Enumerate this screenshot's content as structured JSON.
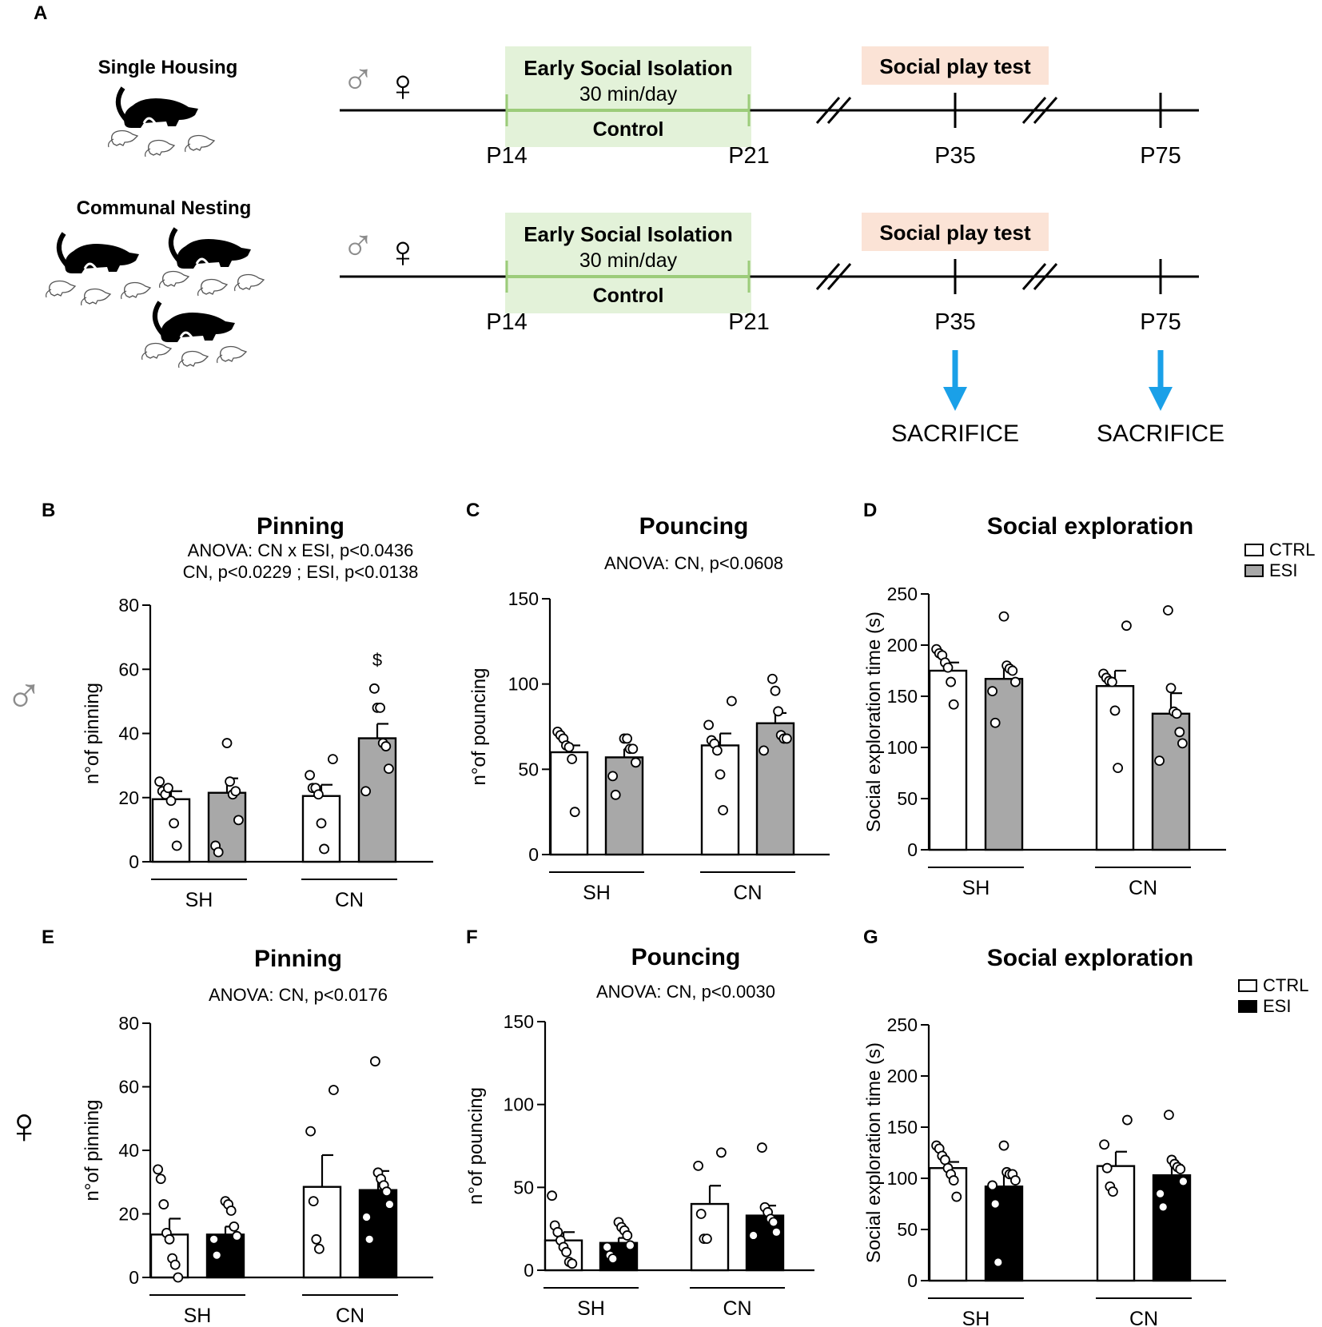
{
  "panel_a": {
    "letter": "A",
    "male_symbol": "♂",
    "female_symbol": "♀",
    "housing": [
      {
        "name": "Single Housing"
      },
      {
        "name": "Communal Nesting"
      }
    ],
    "timeline": {
      "green_title": "Early Social Isolation",
      "green_sub": "30 min/day",
      "green_control": "Control",
      "social_test": "Social play test",
      "ticks": [
        "P14",
        "P21",
        "P35",
        "P75"
      ],
      "sacrifice": "SACRIFICE"
    },
    "colors": {
      "green_box": "#e3f2d9",
      "green_line": "#9ccc7a",
      "salmon_box": "#fbe3d6",
      "arrow": "#1aa0e8",
      "gray_symbol": "#8c8c8c"
    }
  },
  "colors": {
    "ctrl_fill": "#ffffff",
    "esi_male": "#a8a8a8",
    "esi_female": "#000000"
  },
  "chart_data": [
    {
      "id": "B",
      "type": "bar",
      "letter": "B",
      "title": "Pinning",
      "anova": [
        "ANOVA: CN x ESI, p<0.0436",
        "CN, p<0.0229 ; ESI, p<0.0138"
      ],
      "ylabel": "n°of pinning",
      "ylim": [
        0,
        80
      ],
      "yticks": [
        0,
        20,
        40,
        60,
        80
      ],
      "groups": [
        "SH",
        "CN"
      ],
      "series": [
        "CTRL",
        "ESI"
      ],
      "esi_color": "#a8a8a8",
      "bars": [
        {
          "group": "SH",
          "series": "CTRL",
          "mean": 19.5,
          "sem": 2.5,
          "points": [
            25,
            22,
            21,
            23,
            19,
            12,
            5
          ]
        },
        {
          "group": "SH",
          "series": "ESI",
          "mean": 21.5,
          "sem": 4.5,
          "points": [
            37,
            25,
            21,
            22,
            13,
            5,
            3
          ]
        },
        {
          "group": "CN",
          "series": "CTRL",
          "mean": 20.5,
          "sem": 3.5,
          "points": [
            32,
            27,
            23,
            23,
            21,
            12,
            4
          ]
        },
        {
          "group": "CN",
          "series": "ESI",
          "mean": 38.5,
          "sem": 4.5,
          "points": [
            54,
            48,
            48,
            37,
            36,
            29,
            22
          ]
        }
      ],
      "annotations": [
        {
          "text": "$",
          "group": "CN",
          "series": "ESI",
          "y": 63
        }
      ]
    },
    {
      "id": "C",
      "type": "bar",
      "letter": "C",
      "title": "Pouncing",
      "anova": [
        "ANOVA: CN, p<0.0608"
      ],
      "ylabel": "n°of pouncing",
      "ylim": [
        0,
        150
      ],
      "yticks": [
        0,
        50,
        100,
        150
      ],
      "groups": [
        "SH",
        "CN"
      ],
      "series": [
        "CTRL",
        "ESI"
      ],
      "esi_color": "#a8a8a8",
      "bars": [
        {
          "group": "SH",
          "series": "CTRL",
          "mean": 60,
          "sem": 4,
          "points": [
            72,
            70,
            68,
            64,
            63,
            56,
            25
          ]
        },
        {
          "group": "SH",
          "series": "ESI",
          "mean": 57,
          "sem": 5,
          "points": [
            68,
            68,
            62,
            62,
            54,
            46,
            35
          ]
        },
        {
          "group": "CN",
          "series": "CTRL",
          "mean": 64,
          "sem": 7,
          "points": [
            90,
            76,
            67,
            65,
            61,
            47,
            26
          ]
        },
        {
          "group": "CN",
          "series": "ESI",
          "mean": 77,
          "sem": 6,
          "points": [
            103,
            96,
            84,
            70,
            68,
            68,
            61
          ]
        }
      ],
      "annotations": []
    },
    {
      "id": "D",
      "type": "bar",
      "letter": "D",
      "title": "Social exploration",
      "anova": [],
      "ylabel": "Social exploration time (s)",
      "ylim": [
        0,
        250
      ],
      "yticks": [
        0,
        50,
        100,
        150,
        200,
        250
      ],
      "groups": [
        "SH",
        "CN"
      ],
      "series": [
        "CTRL",
        "ESI"
      ],
      "esi_color": "#a8a8a8",
      "legend": [
        "CTRL",
        "ESI"
      ],
      "bars": [
        {
          "group": "SH",
          "series": "CTRL",
          "mean": 175,
          "sem": 8,
          "points": [
            196,
            192,
            190,
            183,
            178,
            164,
            142
          ]
        },
        {
          "group": "SH",
          "series": "ESI",
          "mean": 167,
          "sem": 12,
          "points": [
            228,
            180,
            177,
            175,
            164,
            155,
            124
          ]
        },
        {
          "group": "CN",
          "series": "CTRL",
          "mean": 160,
          "sem": 15,
          "points": [
            219,
            172,
            168,
            165,
            164,
            136,
            80
          ]
        },
        {
          "group": "CN",
          "series": "ESI",
          "mean": 133,
          "sem": 20,
          "points": [
            234,
            158,
            135,
            133,
            115,
            104,
            87
          ]
        }
      ],
      "annotations": []
    },
    {
      "id": "E",
      "type": "bar",
      "letter": "E",
      "title": "Pinning",
      "anova": [
        "ANOVA: CN, p<0.0176"
      ],
      "ylabel": "n°of pinning",
      "ylim": [
        0,
        80
      ],
      "yticks": [
        0,
        20,
        40,
        60,
        80
      ],
      "groups": [
        "SH",
        "CN"
      ],
      "series": [
        "CTRL",
        "ESI"
      ],
      "esi_color": "#000000",
      "bars": [
        {
          "group": "SH",
          "series": "CTRL",
          "mean": 13.5,
          "sem": 5,
          "points": [
            34,
            31,
            23,
            14,
            12,
            6,
            4,
            0
          ]
        },
        {
          "group": "SH",
          "series": "ESI",
          "mean": 13.5,
          "sem": 2.5,
          "points": [
            24,
            23,
            21,
            16,
            13,
            12,
            7
          ]
        },
        {
          "group": "CN",
          "series": "CTRL",
          "mean": 28.5,
          "sem": 10,
          "points": [
            59,
            46,
            24,
            12,
            9
          ]
        },
        {
          "group": "CN",
          "series": "ESI",
          "mean": 27.5,
          "sem": 6,
          "points": [
            68,
            33,
            31,
            29,
            27,
            23,
            19,
            12
          ]
        }
      ],
      "annotations": []
    },
    {
      "id": "F",
      "type": "bar",
      "letter": "F",
      "title": "Pouncing",
      "anova": [
        "ANOVA: CN, p<0.0030"
      ],
      "ylabel": "n°of pouncing",
      "ylim": [
        0,
        150
      ],
      "yticks": [
        0,
        50,
        100,
        150
      ],
      "groups": [
        "SH",
        "CN"
      ],
      "series": [
        "CTRL",
        "ESI"
      ],
      "esi_color": "#000000",
      "bars": [
        {
          "group": "SH",
          "series": "CTRL",
          "mean": 18,
          "sem": 5,
          "points": [
            45,
            27,
            23,
            18,
            14,
            11,
            5,
            4
          ]
        },
        {
          "group": "SH",
          "series": "ESI",
          "mean": 16.5,
          "sem": 3,
          "points": [
            29,
            26,
            24,
            21,
            15,
            14,
            9,
            7
          ]
        },
        {
          "group": "CN",
          "series": "CTRL",
          "mean": 40,
          "sem": 11,
          "points": [
            71,
            63,
            34,
            19,
            19
          ]
        },
        {
          "group": "CN",
          "series": "ESI",
          "mean": 33,
          "sem": 6,
          "points": [
            74,
            38,
            35,
            31,
            29,
            23,
            21
          ]
        }
      ],
      "annotations": []
    },
    {
      "id": "G",
      "type": "bar",
      "letter": "G",
      "title": "Social exploration",
      "anova": [],
      "ylabel": "Social exploration time (s)",
      "ylim": [
        0,
        250
      ],
      "yticks": [
        0,
        50,
        100,
        150,
        200,
        250
      ],
      "groups": [
        "SH",
        "CN"
      ],
      "series": [
        "CTRL",
        "ESI"
      ],
      "esi_color": "#000000",
      "legend": [
        "CTRL",
        "ESI"
      ],
      "bars": [
        {
          "group": "SH",
          "series": "CTRL",
          "mean": 110,
          "sem": 6,
          "points": [
            132,
            129,
            122,
            118,
            110,
            104,
            98,
            82
          ]
        },
        {
          "group": "SH",
          "series": "ESI",
          "mean": 92,
          "sem": 12,
          "points": [
            132,
            106,
            104,
            104,
            98,
            93,
            75,
            18
          ]
        },
        {
          "group": "CN",
          "series": "CTRL",
          "mean": 112,
          "sem": 14,
          "points": [
            157,
            133,
            110,
            92,
            87
          ]
        },
        {
          "group": "CN",
          "series": "ESI",
          "mean": 103,
          "sem": 10,
          "points": [
            162,
            118,
            114,
            111,
            109,
            97,
            85,
            72
          ]
        }
      ],
      "annotations": []
    }
  ]
}
